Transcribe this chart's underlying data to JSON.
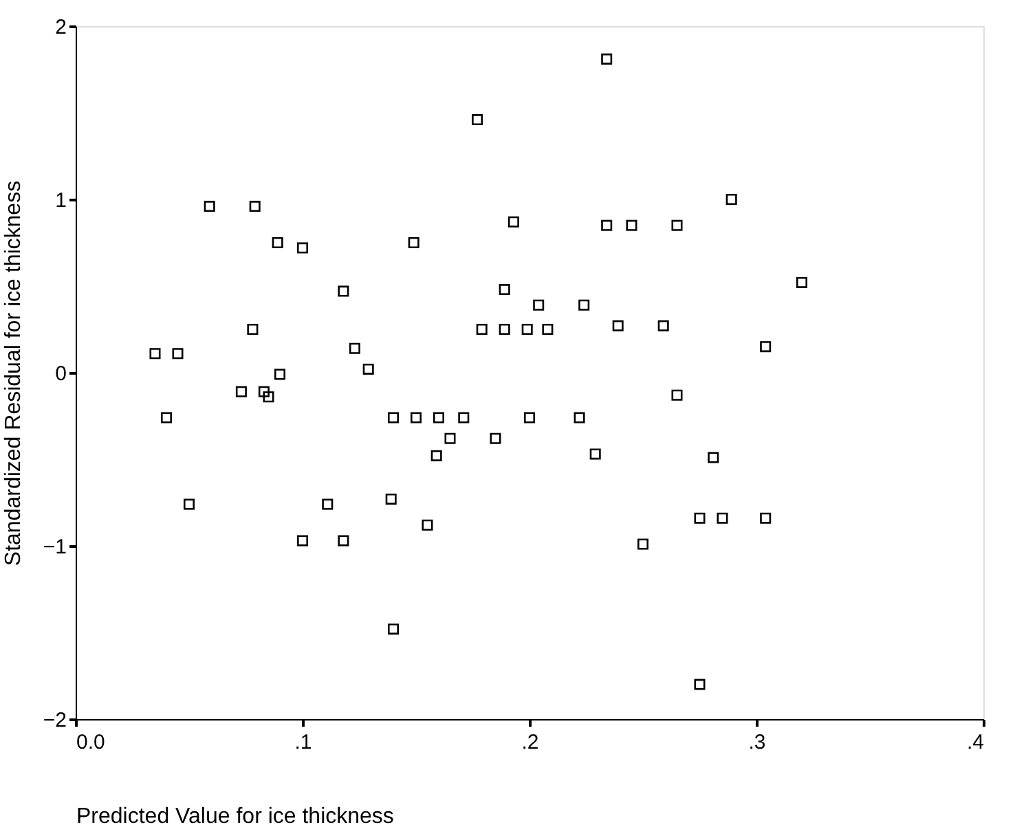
{
  "chart_data": {
    "type": "scatter",
    "xlabel": "Predicted Value for ice thickness",
    "ylabel": "Standardized Residual for ice thickness",
    "marker": "square",
    "grid": false,
    "legend": false,
    "xlim": [
      0,
      0.4
    ],
    "ylim": [
      -2,
      2
    ],
    "xticks": [
      {
        "value": 0,
        "label": "0.0"
      },
      {
        "value": 0.1,
        "label": ".1"
      },
      {
        "value": 0.2,
        "label": ".2"
      },
      {
        "value": 0.3,
        "label": ".3"
      },
      {
        "value": 0.4,
        "label": ".4"
      }
    ],
    "yticks": [
      -2,
      -1,
      0,
      1,
      2
    ],
    "series": [
      {
        "color": "#000000",
        "x": [
          0.177,
          0.059,
          0.079,
          0.089,
          0.1,
          0.149,
          0.193,
          0.118,
          0.189,
          0.078,
          0.179,
          0.189,
          0.199,
          0.208,
          0.204,
          0.224,
          0.035,
          0.045,
          0.123,
          0.129,
          0.09,
          0.073,
          0.083,
          0.085,
          0.234,
          0.289,
          0.234,
          0.245,
          0.265,
          0.32,
          0.239,
          0.259,
          0.304,
          0.265,
          0.04,
          0.05,
          0.14,
          0.15,
          0.16,
          0.171,
          0.2,
          0.165,
          0.185,
          0.159,
          0.139,
          0.111,
          0.155,
          0.1,
          0.118,
          0.14,
          0.222,
          0.229,
          0.281,
          0.275,
          0.285,
          0.304,
          0.25,
          0.275
        ],
        "values": [
          1.46,
          0.96,
          0.96,
          0.75,
          0.72,
          0.75,
          0.87,
          0.47,
          0.48,
          0.25,
          0.25,
          0.25,
          0.25,
          0.25,
          0.39,
          0.39,
          0.11,
          0.11,
          0.14,
          0.02,
          -0.01,
          -0.11,
          -0.11,
          -0.14,
          1.81,
          1.0,
          0.85,
          0.85,
          0.85,
          0.52,
          0.27,
          0.27,
          0.15,
          -0.13,
          -0.26,
          -0.76,
          -0.26,
          -0.26,
          -0.26,
          -0.26,
          -0.26,
          -0.38,
          -0.38,
          -0.48,
          -0.73,
          -0.76,
          -0.88,
          -0.97,
          -0.97,
          -1.48,
          -0.26,
          -0.47,
          -0.49,
          -0.84,
          -0.84,
          -0.84,
          -0.99,
          -1.8
        ]
      }
    ]
  }
}
